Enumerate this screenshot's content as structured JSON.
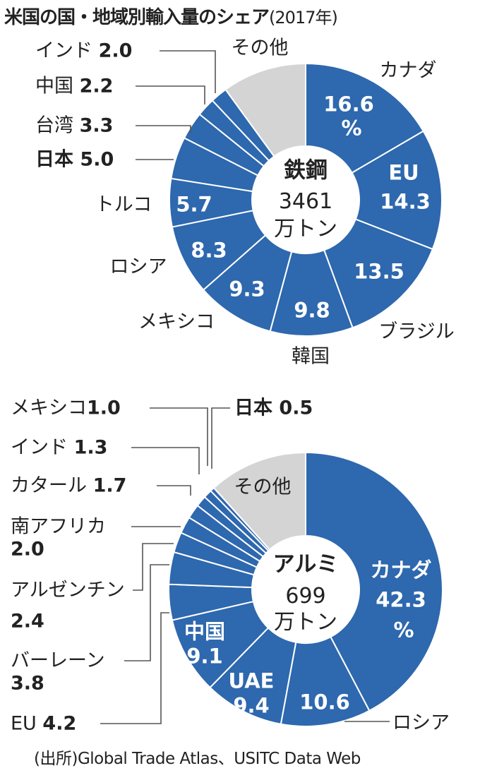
{
  "title": "米国の国・地域別輸入量のシェア",
  "title_year": "(2017年)",
  "source": "(出所)Global Trade Atlas、USITC Data Web",
  "colors": {
    "main": "#2e68ae",
    "other": "#d4d4d4",
    "line": "#555555"
  },
  "chart_data": [
    {
      "type": "pie",
      "donut": true,
      "unit": "%",
      "center_title": "鉄鋼",
      "center_value": "3461",
      "center_unit": "万トン",
      "order": "clockwise from top",
      "slices": [
        {
          "label": "カナダ",
          "value": 16.6,
          "value_text": "16.6",
          "pct": "%"
        },
        {
          "label": "EU",
          "value": 14.3,
          "value_text": "14.3"
        },
        {
          "label": "ブラジル",
          "value": 13.5,
          "value_text": "13.5"
        },
        {
          "label": "韓国",
          "value": 9.8,
          "value_text": "9.8"
        },
        {
          "label": "メキシコ",
          "value": 9.3,
          "value_text": "9.3"
        },
        {
          "label": "ロシア",
          "value": 8.3,
          "value_text": "8.3"
        },
        {
          "label": "トルコ",
          "value": 5.7,
          "value_text": "5.7"
        },
        {
          "label": "日本",
          "value": 5.0,
          "value_text": "5.0"
        },
        {
          "label": "台湾",
          "value": 3.3,
          "value_text": "3.3"
        },
        {
          "label": "中国",
          "value": 2.2,
          "value_text": "2.2"
        },
        {
          "label": "インド",
          "value": 2.0,
          "value_text": "2.0"
        },
        {
          "label": "その他",
          "value": 10.0,
          "other": true
        }
      ]
    },
    {
      "type": "pie",
      "donut": true,
      "unit": "%",
      "center_title": "アルミ",
      "center_value": "699",
      "center_unit": "万トン",
      "order": "clockwise from top",
      "slices": [
        {
          "label": "カナダ",
          "value": 42.3,
          "value_text": "42.3",
          "pct": "%"
        },
        {
          "label": "ロシア",
          "value": 10.6,
          "value_text": "10.6"
        },
        {
          "label": "UAE",
          "value": 9.4,
          "value_text": "9.4"
        },
        {
          "label": "中国",
          "value": 9.1,
          "value_text": "9.1"
        },
        {
          "label": "EU",
          "value": 4.2,
          "value_text": "4.2"
        },
        {
          "label": "バーレーン",
          "value": 3.8,
          "value_text": "3.8"
        },
        {
          "label": "アルゼンチン",
          "value": 2.4,
          "value_text": "2.4"
        },
        {
          "label": "南アフリカ",
          "value": 2.0,
          "value_text": "2.0"
        },
        {
          "label": "カタール",
          "value": 1.7,
          "value_text": "1.7"
        },
        {
          "label": "インド",
          "value": 1.3,
          "value_text": "1.3"
        },
        {
          "label": "メキシコ",
          "value": 1.0,
          "value_text": "1.0"
        },
        {
          "label": "日本",
          "value": 0.5,
          "value_text": "0.5"
        },
        {
          "label": "その他",
          "value": 11.7,
          "other": true
        }
      ]
    }
  ]
}
